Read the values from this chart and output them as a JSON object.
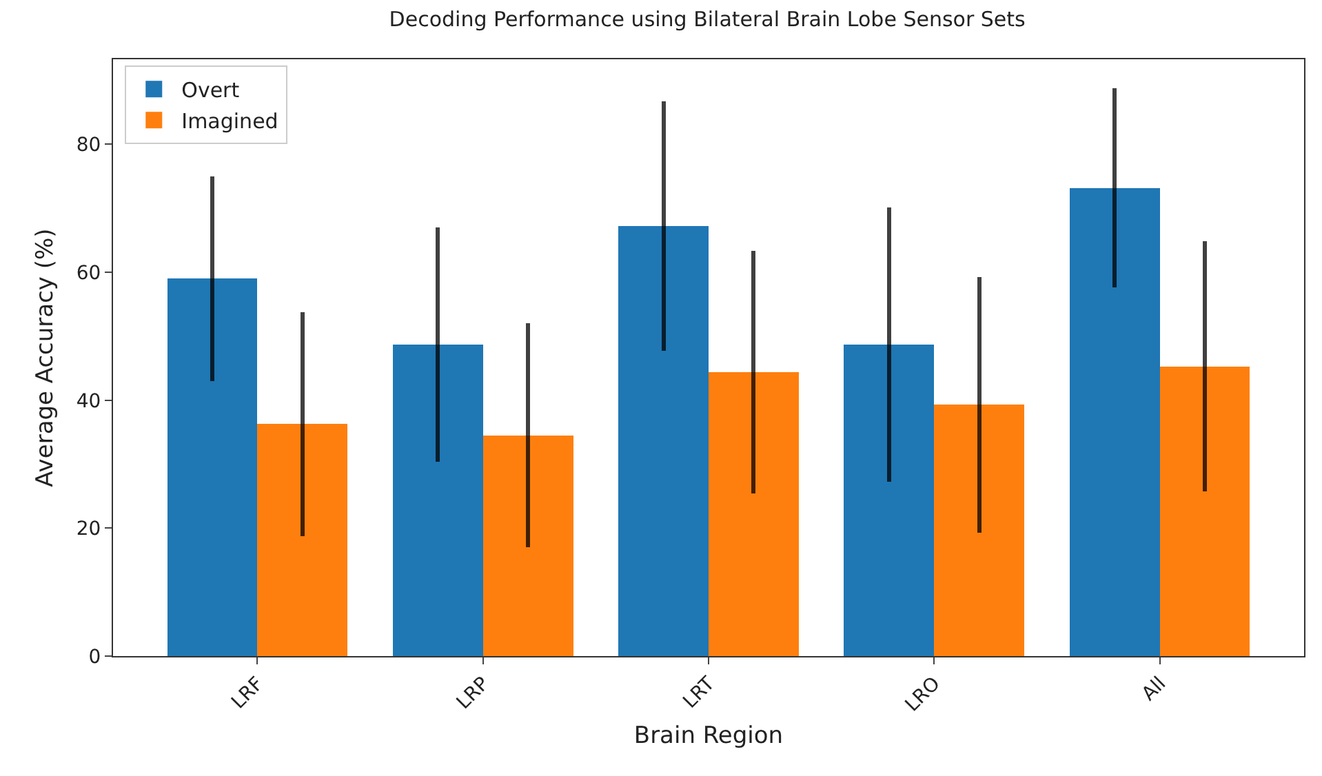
{
  "chart_data": {
    "type": "bar",
    "title": "Decoding Performance using Bilateral Brain Lobe Sensor Sets",
    "xlabel": "Brain Region",
    "ylabel": "Average Accuracy (%)",
    "categories": [
      "LRF",
      "LRP",
      "LRT",
      "LRO",
      "All"
    ],
    "series": [
      {
        "name": "Overt",
        "color": "#1f77b4",
        "values": [
          59.0,
          48.7,
          67.2,
          48.7,
          73.2
        ],
        "errors": [
          16,
          18.3,
          19.5,
          21.4,
          15.6
        ]
      },
      {
        "name": "Imagined",
        "color": "#ff7f0e",
        "values": [
          36.3,
          34.5,
          44.4,
          39.3,
          45.3
        ],
        "errors": [
          17.5,
          17.5,
          19,
          20,
          19.6
        ]
      }
    ],
    "ylim": [
      0,
      93.3
    ],
    "yticks": [
      0,
      20,
      40,
      60,
      80
    ],
    "grid": false,
    "legend": "top left"
  }
}
